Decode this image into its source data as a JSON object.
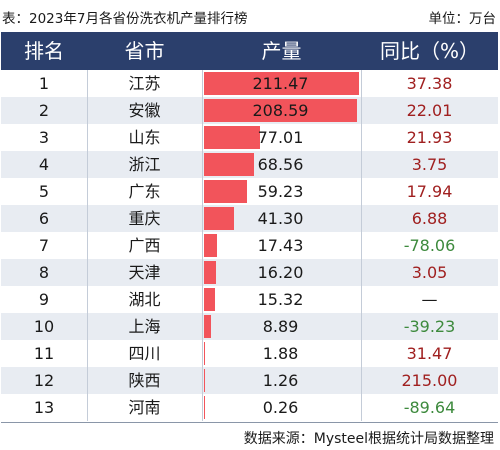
{
  "title": "表：2023年7月各省份洗衣机产量排行榜",
  "unit": "单位：万台",
  "source": "数据来源：Mysteel根据统计局数据整理",
  "columns": [
    "排名",
    "省市",
    "产量",
    "同比（%）"
  ],
  "colors": {
    "header_bg": "#2b3f6c",
    "bar": "#f2545b",
    "row_alt": "#e8ecf2",
    "positive": "#a02020",
    "negative": "#3d8a3d"
  },
  "chart_data": {
    "type": "table",
    "categories": [
      "江苏",
      "安徽",
      "山东",
      "浙江",
      "广东",
      "重庆",
      "广西",
      "天津",
      "湖北",
      "上海",
      "四川",
      "陕西",
      "河南"
    ],
    "rows": [
      {
        "rank": "1",
        "province": "江苏",
        "output": 211.47,
        "output_label": "211.47",
        "yoy": "37.38",
        "yoy_sign": "pos"
      },
      {
        "rank": "2",
        "province": "安徽",
        "output": 208.59,
        "output_label": "208.59",
        "yoy": "22.01",
        "yoy_sign": "pos"
      },
      {
        "rank": "3",
        "province": "山东",
        "output": 77.01,
        "output_label": "77.01",
        "yoy": "21.93",
        "yoy_sign": "pos"
      },
      {
        "rank": "4",
        "province": "浙江",
        "output": 68.56,
        "output_label": "68.56",
        "yoy": "3.75",
        "yoy_sign": "pos"
      },
      {
        "rank": "5",
        "province": "广东",
        "output": 59.23,
        "output_label": "59.23",
        "yoy": "17.94",
        "yoy_sign": "pos"
      },
      {
        "rank": "6",
        "province": "重庆",
        "output": 41.3,
        "output_label": "41.30",
        "yoy": "6.88",
        "yoy_sign": "pos"
      },
      {
        "rank": "7",
        "province": "广西",
        "output": 17.43,
        "output_label": "17.43",
        "yoy": "-78.06",
        "yoy_sign": "neg"
      },
      {
        "rank": "8",
        "province": "天津",
        "output": 16.2,
        "output_label": "16.20",
        "yoy": "3.05",
        "yoy_sign": "pos"
      },
      {
        "rank": "9",
        "province": "湖北",
        "output": 15.32,
        "output_label": "15.32",
        "yoy": "—",
        "yoy_sign": "none"
      },
      {
        "rank": "10",
        "province": "上海",
        "output": 8.89,
        "output_label": "8.89",
        "yoy": "-39.23",
        "yoy_sign": "neg"
      },
      {
        "rank": "11",
        "province": "四川",
        "output": 1.88,
        "output_label": "1.88",
        "yoy": "31.47",
        "yoy_sign": "pos"
      },
      {
        "rank": "12",
        "province": "陕西",
        "output": 1.26,
        "output_label": "1.26",
        "yoy": "215.00",
        "yoy_sign": "pos"
      },
      {
        "rank": "13",
        "province": "河南",
        "output": 0.26,
        "output_label": "0.26",
        "yoy": "-89.64",
        "yoy_sign": "neg"
      }
    ]
  }
}
